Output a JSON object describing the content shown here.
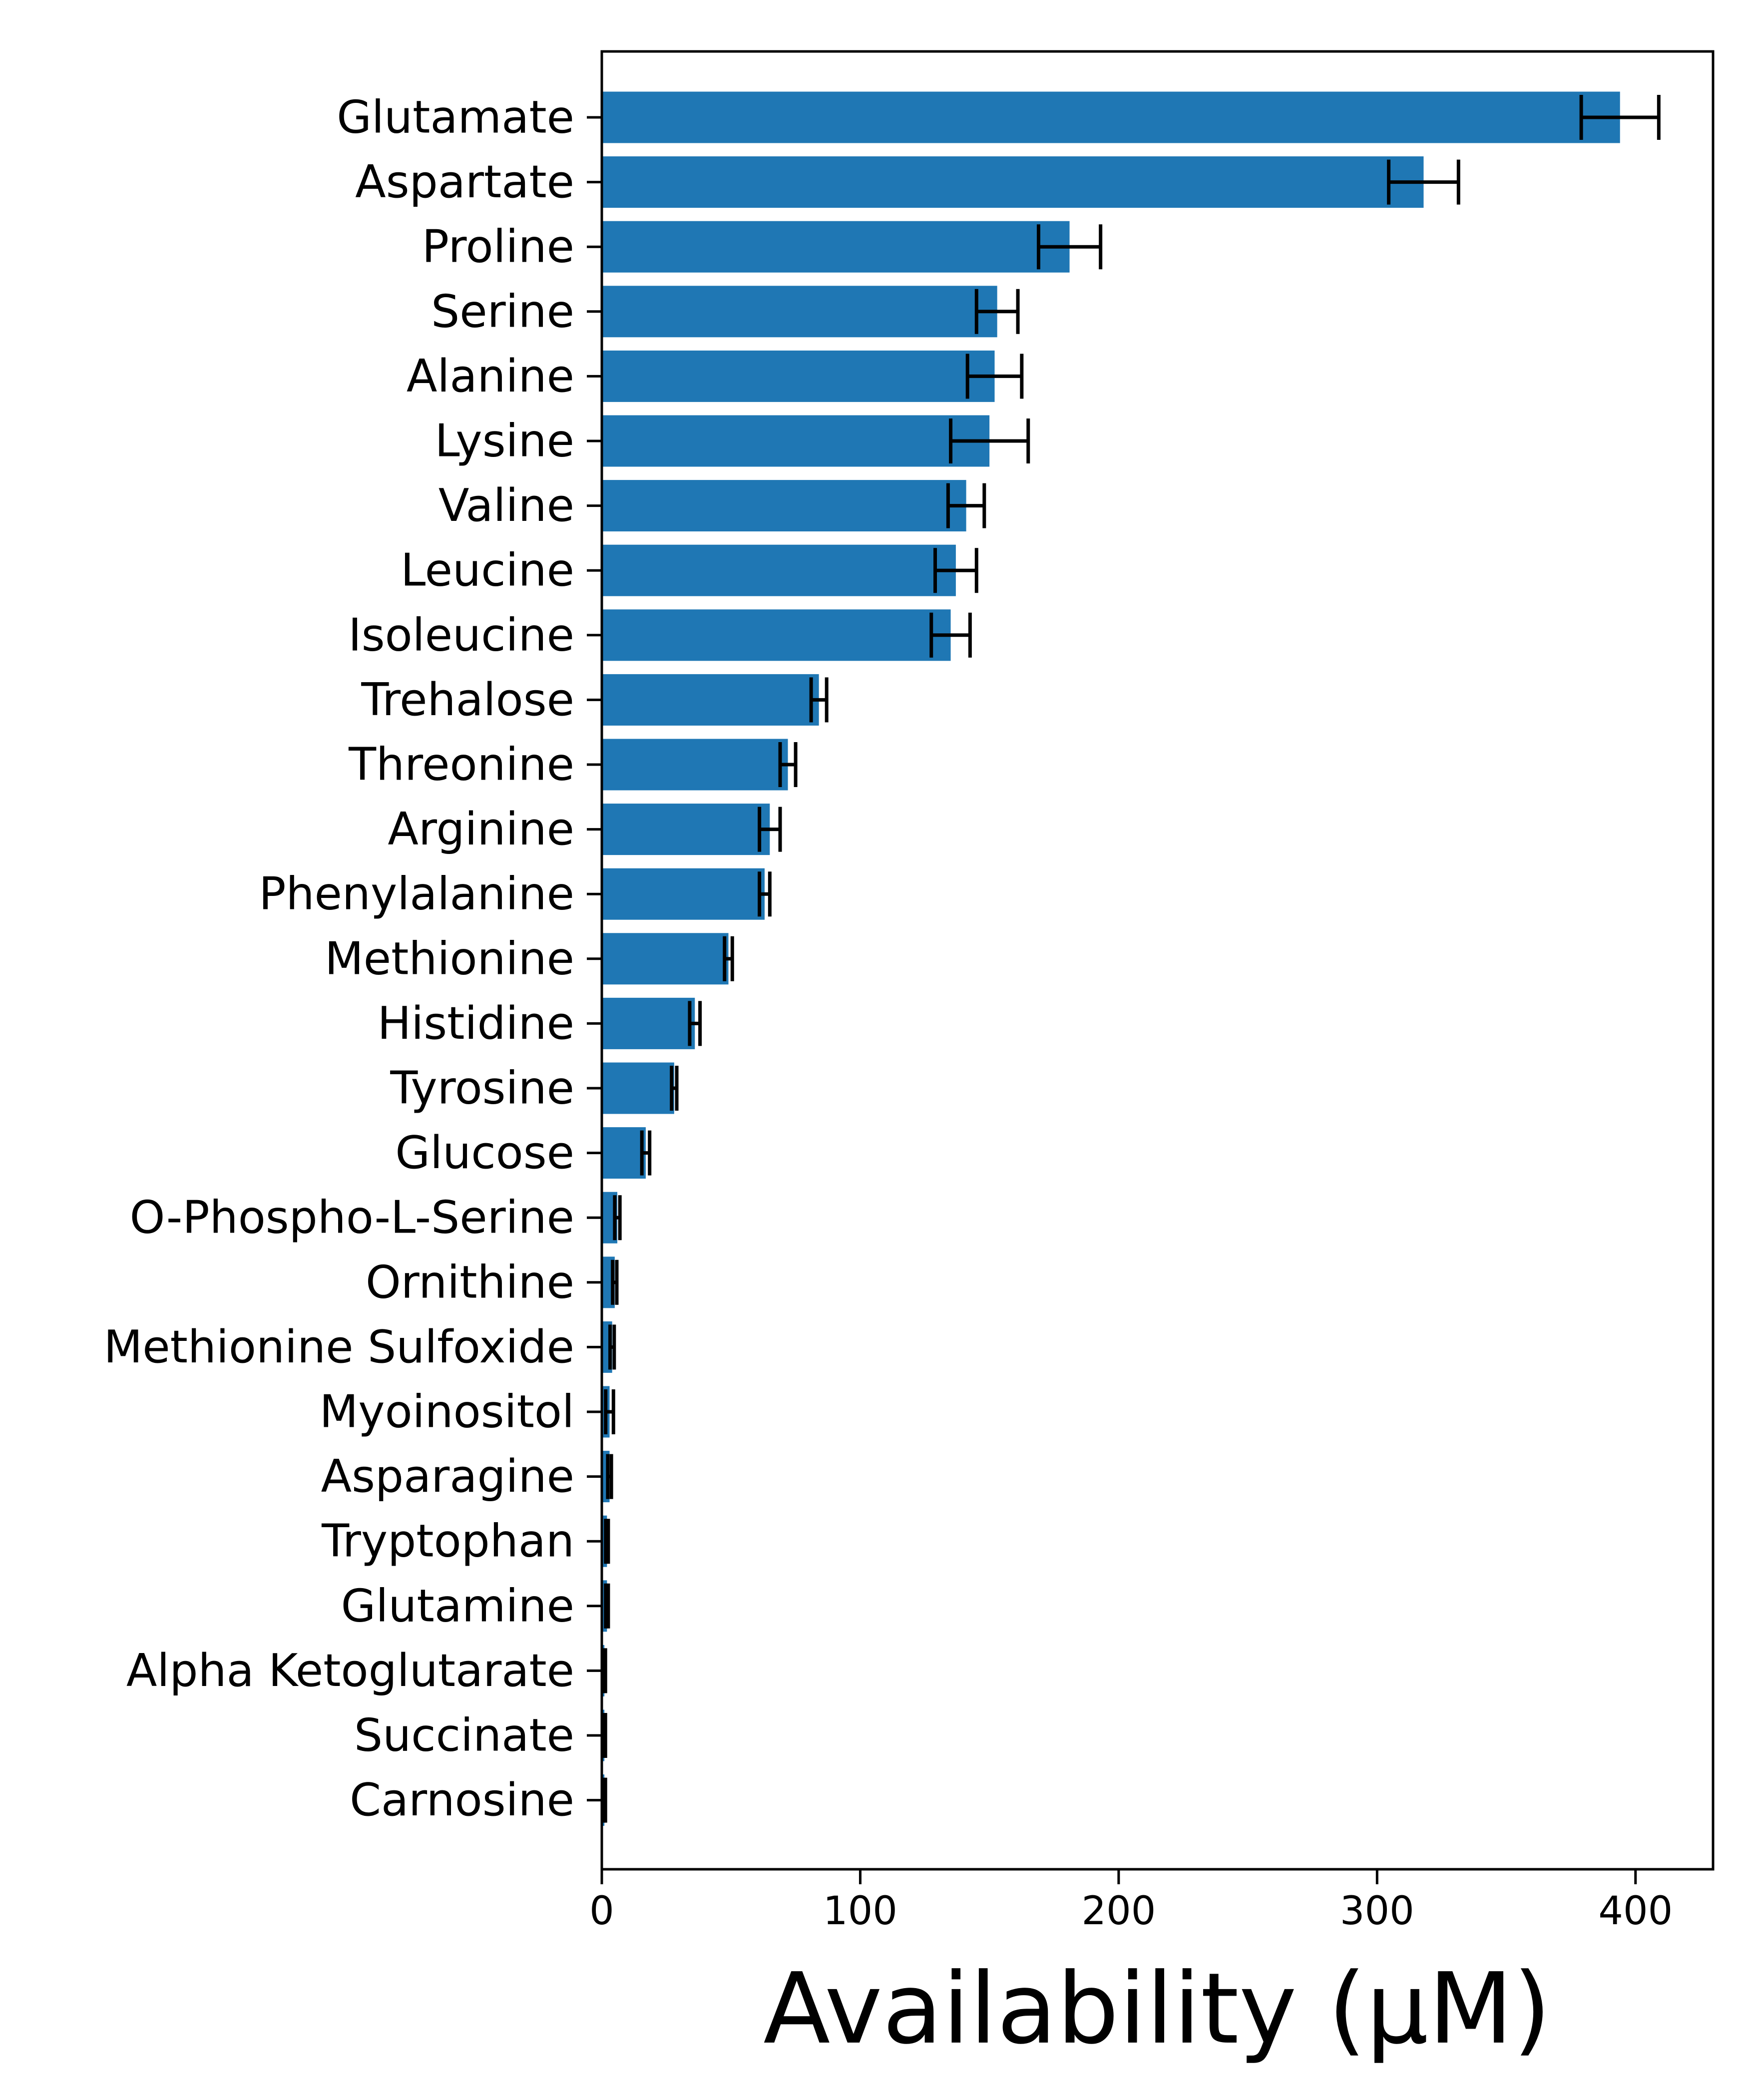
{
  "chart_data": {
    "type": "bar",
    "orientation": "horizontal",
    "title": "",
    "xlabel": "Availability (µM)",
    "ylabel": "",
    "xlim": [
      0,
      430
    ],
    "xticks": [
      0,
      100,
      200,
      300,
      400
    ],
    "grid": false,
    "bar_color": "#1f77b4",
    "errorbar_color": "#000000",
    "categories": [
      "Glutamate",
      "Aspartate",
      "Proline",
      "Serine",
      "Alanine",
      "Lysine",
      "Valine",
      "Leucine",
      "Isoleucine",
      "Trehalose",
      "Threonine",
      "Arginine",
      "Phenylalanine",
      "Methionine",
      "Histidine",
      "Tyrosine",
      "Glucose",
      "O-Phospho-L-Serine",
      "Ornithine",
      "Methionine Sulfoxide",
      "Myoinositol",
      "Asparagine",
      "Tryptophan",
      "Glutamine",
      "Alpha Ketoglutarate",
      "Succinate",
      "Carnosine"
    ],
    "values": [
      394,
      318,
      181,
      153,
      152,
      150,
      141,
      137,
      135,
      84,
      72,
      65,
      63,
      49,
      36,
      28,
      17,
      6,
      5,
      4,
      3,
      3,
      2,
      2,
      1,
      1,
      1
    ],
    "errors": [
      15,
      13.5,
      12,
      8,
      10.5,
      15,
      7,
      8,
      7.5,
      3,
      3,
      4,
      2,
      1.5,
      2,
      1,
      1.5,
      1,
      0.8,
      0.8,
      1.5,
      0.7,
      0.5,
      0.5,
      0.4,
      0.4,
      0.4
    ]
  }
}
